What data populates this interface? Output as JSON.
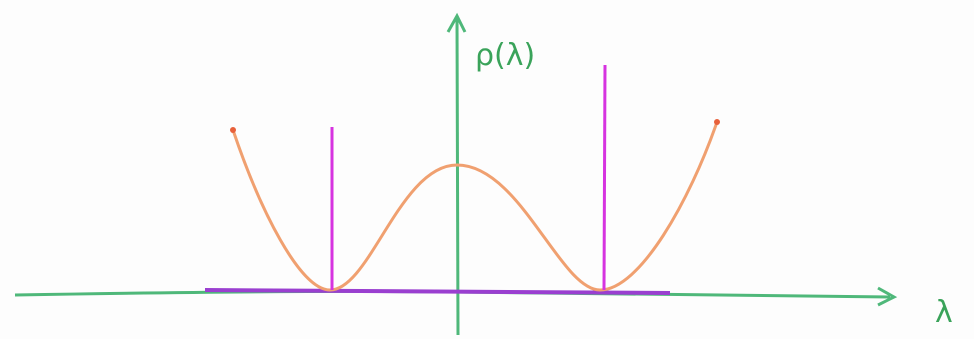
{
  "labels": {
    "y_axis": "ρ(λ)",
    "x_axis": "λ"
  }
}
